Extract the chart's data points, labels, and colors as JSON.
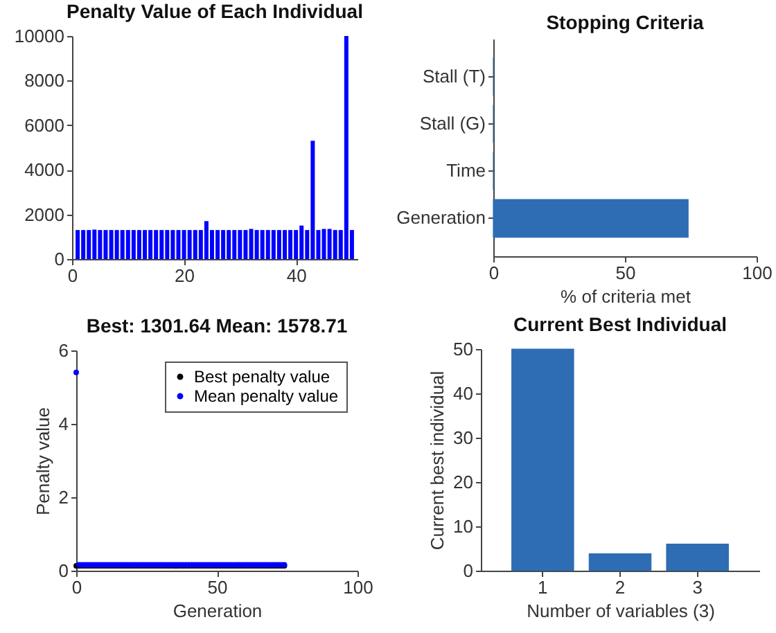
{
  "chart_data": [
    {
      "type": "bar",
      "title": "Penalty Value of Each Individual",
      "x": [
        1,
        2,
        3,
        4,
        5,
        6,
        7,
        8,
        9,
        10,
        11,
        12,
        13,
        14,
        15,
        16,
        17,
        18,
        19,
        20,
        21,
        22,
        23,
        24,
        25,
        26,
        27,
        28,
        29,
        30,
        31,
        32,
        33,
        34,
        35,
        36,
        37,
        38,
        39,
        40,
        41,
        42,
        43,
        44,
        45,
        46,
        47,
        48,
        49,
        50
      ],
      "values": [
        1300,
        1300,
        1300,
        1320,
        1300,
        1300,
        1300,
        1300,
        1300,
        1300,
        1300,
        1300,
        1300,
        1300,
        1300,
        1300,
        1300,
        1300,
        1300,
        1300,
        1300,
        1300,
        1300,
        1700,
        1300,
        1300,
        1300,
        1300,
        1300,
        1300,
        1300,
        1350,
        1300,
        1300,
        1300,
        1300,
        1300,
        1300,
        1300,
        1300,
        1500,
        1300,
        5300,
        1300,
        1350,
        1350,
        1300,
        1300,
        10000,
        1300
      ],
      "color": "#0000ff",
      "xlim": [
        0,
        51
      ],
      "xticks": [
        0,
        20,
        40
      ],
      "ylim": [
        0,
        10000
      ],
      "yticks": [
        0,
        2000,
        4000,
        6000,
        8000,
        10000
      ]
    },
    {
      "type": "bar",
      "title": "Stopping Criteria",
      "orientation": "horizontal",
      "categories": [
        "Stall (T)",
        "Stall (G)",
        "Time",
        "Generation"
      ],
      "values": [
        0,
        0,
        0,
        74
      ],
      "color": "#2e6db4",
      "xlabel": "% of criteria met",
      "xlim": [
        0,
        100
      ],
      "xticks": [
        0,
        50,
        100
      ]
    },
    {
      "type": "scatter",
      "title": "Best: 1301.64 Mean: 1578.71",
      "xlabel": "Generation",
      "ylabel": "Penalty value",
      "x": [
        0,
        1,
        2,
        3,
        4,
        5,
        6,
        7,
        8,
        9,
        10,
        11,
        12,
        13,
        14,
        15,
        16,
        17,
        18,
        19,
        20,
        21,
        22,
        23,
        24,
        25,
        26,
        27,
        28,
        29,
        30,
        31,
        32,
        33,
        34,
        35,
        36,
        37,
        38,
        39,
        40,
        41,
        42,
        43,
        44,
        45,
        46,
        47,
        48,
        49,
        50,
        51,
        52,
        53,
        54,
        55,
        56,
        57,
        58,
        59,
        60,
        61,
        62,
        63,
        64,
        65,
        66,
        67,
        68,
        69,
        70,
        71,
        72,
        73,
        74
      ],
      "series": [
        {
          "name": "Best penalty value",
          "color": "#000000",
          "values": [
            0.13,
            0.13,
            0.13,
            0.13,
            0.13,
            0.13,
            0.13,
            0.13,
            0.13,
            0.13,
            0.13,
            0.13,
            0.13,
            0.13,
            0.13,
            0.13,
            0.13,
            0.13,
            0.13,
            0.13,
            0.13,
            0.13,
            0.13,
            0.13,
            0.13,
            0.13,
            0.13,
            0.13,
            0.13,
            0.13,
            0.13,
            0.13,
            0.13,
            0.13,
            0.13,
            0.13,
            0.13,
            0.13,
            0.13,
            0.13,
            0.13,
            0.13,
            0.13,
            0.13,
            0.13,
            0.13,
            0.13,
            0.13,
            0.13,
            0.13,
            0.13,
            0.13,
            0.13,
            0.13,
            0.13,
            0.13,
            0.13,
            0.13,
            0.13,
            0.13,
            0.13,
            0.13,
            0.13,
            0.13,
            0.13,
            0.13,
            0.13,
            0.13,
            0.13,
            0.13,
            0.13,
            0.13,
            0.13,
            0.13,
            0.13
          ]
        },
        {
          "name": "Mean penalty value",
          "color": "#0000ff",
          "values": [
            5.4,
            0.16,
            0.16,
            0.16,
            0.16,
            0.16,
            0.16,
            0.16,
            0.16,
            0.16,
            0.16,
            0.16,
            0.16,
            0.16,
            0.16,
            0.16,
            0.16,
            0.16,
            0.16,
            0.16,
            0.16,
            0.16,
            0.16,
            0.16,
            0.16,
            0.16,
            0.16,
            0.16,
            0.16,
            0.16,
            0.16,
            0.16,
            0.16,
            0.16,
            0.16,
            0.16,
            0.16,
            0.16,
            0.16,
            0.16,
            0.16,
            0.16,
            0.16,
            0.16,
            0.16,
            0.16,
            0.16,
            0.16,
            0.16,
            0.16,
            0.16,
            0.16,
            0.16,
            0.16,
            0.16,
            0.16,
            0.16,
            0.16,
            0.16,
            0.16,
            0.16,
            0.16,
            0.16,
            0.16,
            0.16,
            0.16,
            0.16,
            0.16,
            0.16,
            0.16,
            0.16,
            0.16,
            0.16,
            0.16,
            0.16
          ]
        }
      ],
      "marker": "circle",
      "legend": "top right",
      "xlim": [
        0,
        100
      ],
      "xticks": [
        0,
        50,
        100
      ],
      "ylim": [
        0,
        6
      ],
      "yticks": [
        0,
        2,
        4,
        6
      ]
    },
    {
      "type": "bar",
      "title": "Current Best Individual",
      "categories": [
        "1",
        "2",
        "3"
      ],
      "values": [
        50,
        3.8,
        6
      ],
      "color": "#2e6db4",
      "xlabel": "Number of variables (3)",
      "ylabel": "Current best individual",
      "ylim": [
        0,
        50
      ],
      "yticks": [
        0,
        10,
        20,
        30,
        40,
        50
      ]
    }
  ]
}
